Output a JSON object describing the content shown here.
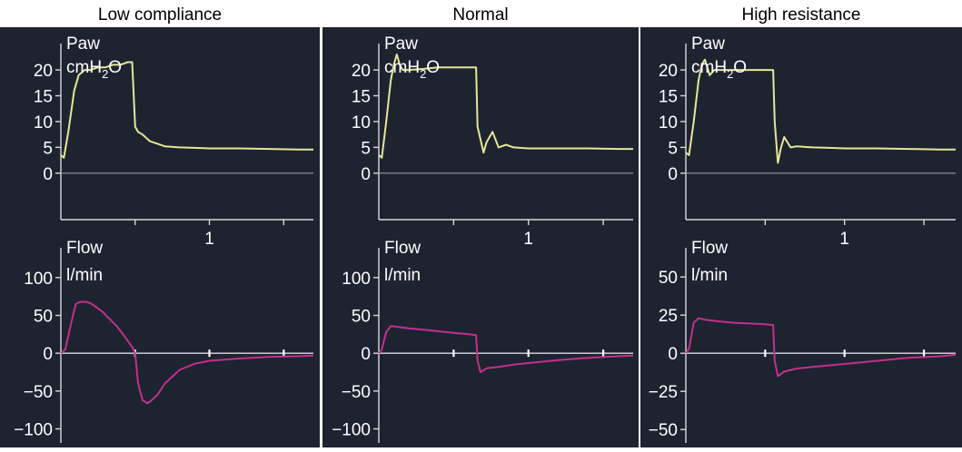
{
  "colors": {
    "header_background": "#ffffff",
    "panel_background": "#1e2330",
    "text": "#ffffff",
    "header_text": "#000000",
    "axis": "#d8d8d8",
    "zero_line": "#9a9aa8",
    "pressure_trace": "#e2e89a",
    "flow_trace": "#c2308e"
  },
  "chart_data": [
    {
      "type": "line",
      "title": "Low compliance",
      "pressure": {
        "label_line1": "Paw",
        "unit_prefix": "cmH",
        "unit_sub": "2",
        "unit_suffix": "O",
        "ylim": [
          -9,
          23
        ],
        "yticks": [
          0,
          5,
          10,
          15,
          20
        ],
        "ytick_labels": [
          "0",
          "5",
          "10",
          "15",
          "20"
        ],
        "xlim": [
          0,
          1.7
        ],
        "xticks": [
          0.5,
          1,
          1.5
        ],
        "xtick_labels": [
          "",
          "1",
          ""
        ],
        "series": [
          {
            "x": [
              0,
              0.02,
              0.05,
              0.09,
              0.12,
              0.16,
              0.2,
              0.25,
              0.3,
              0.35,
              0.4,
              0.45,
              0.48,
              0.5,
              0.52,
              0.55,
              0.6,
              0.7,
              0.8,
              0.9,
              1.0,
              1.2,
              1.4,
              1.6,
              1.7
            ],
            "y": [
              3.5,
              3,
              8,
              16,
              19,
              20,
              20,
              20.5,
              20.5,
              21,
              21,
              21.5,
              21.5,
              9,
              8,
              7.5,
              6.2,
              5.2,
              5,
              4.9,
              4.8,
              4.8,
              4.7,
              4.6,
              4.6
            ]
          }
        ]
      },
      "flow": {
        "label_line1": "Flow",
        "label_line2": "l/min",
        "ylim": [
          -115,
          125
        ],
        "yticks": [
          -100,
          -50,
          0,
          50,
          100
        ],
        "ytick_labels": [
          "−100",
          "−50",
          "0",
          "50",
          "100"
        ],
        "xlim": [
          0,
          1.7
        ],
        "xticks": [
          0.5,
          1,
          1.5
        ],
        "series": [
          {
            "x": [
              0,
              0.03,
              0.07,
              0.1,
              0.13,
              0.17,
              0.2,
              0.23,
              0.28,
              0.33,
              0.38,
              0.43,
              0.48,
              0.5,
              0.52,
              0.55,
              0.58,
              0.6,
              0.65,
              0.7,
              0.8,
              0.9,
              1.0,
              1.2,
              1.4,
              1.6,
              1.7
            ],
            "y": [
              0,
              5,
              40,
              65,
              68,
              68,
              66,
              62,
              55,
              45,
              35,
              22,
              8,
              0,
              -40,
              -62,
              -66,
              -64,
              -55,
              -40,
              -22,
              -14,
              -10,
              -7,
              -5,
              -4,
              -3
            ]
          }
        ]
      }
    },
    {
      "type": "line",
      "title": "Normal",
      "pressure": {
        "label_line1": "Paw",
        "unit_prefix": "cmH",
        "unit_sub": "2",
        "unit_suffix": "O",
        "ylim": [
          -9,
          23
        ],
        "yticks": [
          0,
          5,
          10,
          15,
          20
        ],
        "ytick_labels": [
          "0",
          "5",
          "10",
          "15",
          "20"
        ],
        "xlim": [
          0,
          1.7
        ],
        "xticks": [
          0.5,
          1,
          1.5
        ],
        "xtick_labels": [
          "",
          "1",
          ""
        ],
        "series": [
          {
            "x": [
              0,
              0.02,
              0.05,
              0.08,
              0.1,
              0.12,
              0.14,
              0.16,
              0.2,
              0.3,
              0.4,
              0.5,
              0.65,
              0.66,
              0.7,
              0.72,
              0.76,
              0.8,
              0.85,
              0.9,
              1.0,
              1.2,
              1.4,
              1.6,
              1.7
            ],
            "y": [
              3.5,
              3,
              10,
              18,
              21,
              23,
              21,
              20,
              20,
              20.2,
              20.5,
              20.5,
              20.5,
              9,
              4,
              6,
              8,
              5,
              5.5,
              5,
              4.8,
              4.8,
              4.8,
              4.7,
              4.7
            ]
          }
        ]
      },
      "flow": {
        "label_line1": "Flow",
        "label_line2": "l/min",
        "ylim": [
          -115,
          125
        ],
        "yticks": [
          -100,
          -50,
          0,
          50,
          100
        ],
        "ytick_labels": [
          "−100",
          "−50",
          "0",
          "50",
          "100"
        ],
        "xlim": [
          0,
          1.7
        ],
        "xticks": [
          0.5,
          1,
          1.5
        ],
        "series": [
          {
            "x": [
              0,
              0.02,
              0.05,
              0.08,
              0.12,
              0.2,
              0.3,
              0.4,
              0.5,
              0.6,
              0.65,
              0.66,
              0.68,
              0.72,
              0.8,
              0.9,
              1.0,
              1.2,
              1.4,
              1.6,
              1.7
            ],
            "y": [
              0,
              5,
              28,
              36,
              35,
              33,
              31,
              29,
              27,
              25,
              24,
              -10,
              -25,
              -20,
              -18,
              -15,
              -13,
              -9,
              -6,
              -4,
              -3
            ]
          }
        ]
      }
    },
    {
      "type": "line",
      "title": "High resistance",
      "pressure": {
        "label_line1": "Paw",
        "unit_prefix": "cmH",
        "unit_sub": "2",
        "unit_suffix": "O",
        "ylim": [
          -9,
          23
        ],
        "yticks": [
          0,
          5,
          10,
          15,
          20
        ],
        "ytick_labels": [
          "0",
          "5",
          "10",
          "15",
          "20"
        ],
        "xlim": [
          0,
          1.7
        ],
        "xticks": [
          0.5,
          1,
          1.5
        ],
        "xtick_labels": [
          "",
          "1",
          ""
        ],
        "series": [
          {
            "x": [
              0,
              0.02,
              0.05,
              0.08,
              0.1,
              0.12,
              0.15,
              0.18,
              0.22,
              0.3,
              0.4,
              0.5,
              0.55,
              0.56,
              0.58,
              0.6,
              0.62,
              0.66,
              0.7,
              0.8,
              0.9,
              1.0,
              1.2,
              1.4,
              1.6,
              1.7
            ],
            "y": [
              4,
              3.5,
              10,
              18,
              21,
              22,
              19,
              20,
              20,
              20,
              20,
              20,
              20,
              10,
              2,
              5,
              7,
              5,
              5.2,
              5,
              4.9,
              4.8,
              4.8,
              4.7,
              4.6,
              4.6
            ]
          }
        ]
      },
      "flow": {
        "label_line1": "Flow",
        "label_line2": "l/min",
        "ylim": [
          -57,
          62
        ],
        "yticks": [
          -50,
          -25,
          0,
          25,
          50
        ],
        "ytick_labels": [
          "−50",
          "−25",
          "0",
          "25",
          "50"
        ],
        "xlim": [
          0,
          1.7
        ],
        "xticks": [
          0.5,
          1,
          1.5
        ],
        "series": [
          {
            "x": [
              0,
              0.02,
              0.05,
              0.08,
              0.12,
              0.2,
              0.3,
              0.4,
              0.5,
              0.55,
              0.56,
              0.58,
              0.62,
              0.7,
              0.8,
              0.9,
              1.0,
              1.2,
              1.4,
              1.6,
              1.7
            ],
            "y": [
              0,
              3,
              20,
              23,
              22,
              21,
              20,
              19.5,
              19,
              18.5,
              -5,
              -15,
              -12,
              -10,
              -9,
              -8,
              -7,
              -5,
              -3,
              -2,
              -1
            ]
          }
        ]
      }
    }
  ]
}
